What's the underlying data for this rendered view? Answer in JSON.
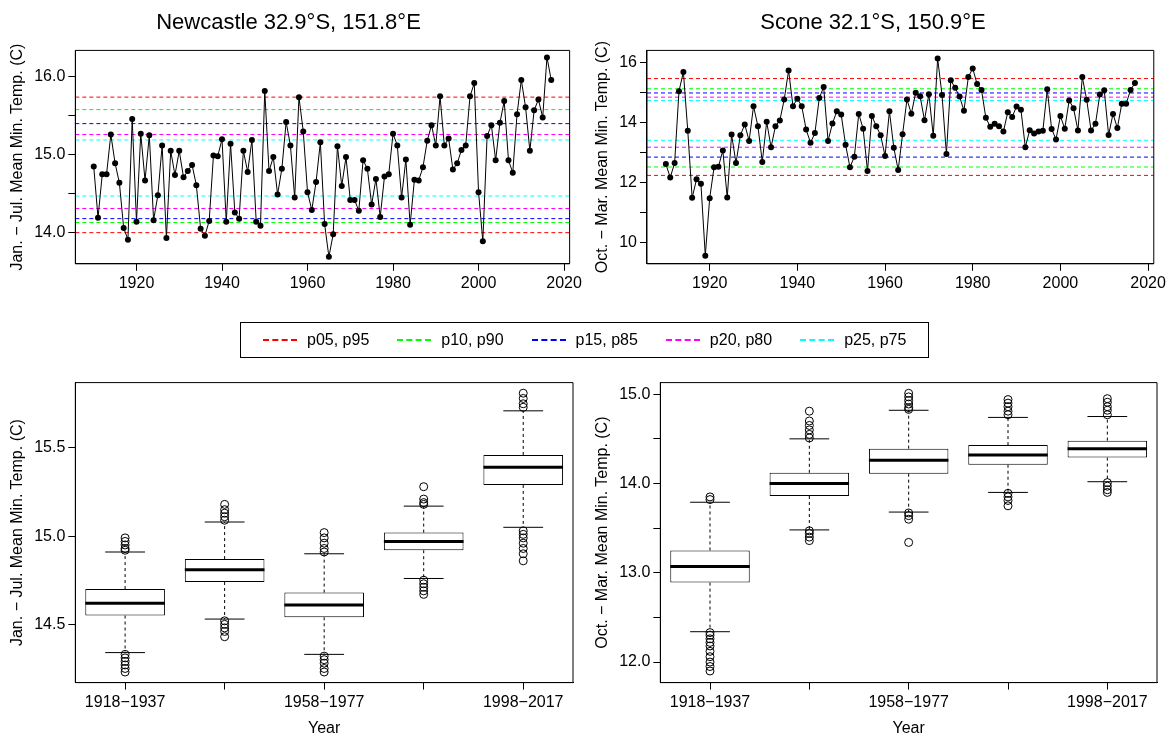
{
  "chart_data": [
    {
      "type": "line",
      "title": "Newcastle 32.9°S, 151.8°E",
      "ylabel": "Jan. − Jul. Mean Min. Temp. (C)",
      "color": "#000000",
      "marker": "circle",
      "line_style": "solid",
      "legend": "bottom",
      "x": [
        1910,
        1911,
        1912,
        1913,
        1914,
        1915,
        1916,
        1917,
        1918,
        1919,
        1920,
        1921,
        1922,
        1923,
        1924,
        1925,
        1926,
        1927,
        1928,
        1929,
        1930,
        1931,
        1932,
        1933,
        1934,
        1935,
        1936,
        1937,
        1938,
        1939,
        1940,
        1941,
        1942,
        1943,
        1944,
        1945,
        1946,
        1947,
        1948,
        1949,
        1950,
        1951,
        1952,
        1953,
        1954,
        1955,
        1956,
        1957,
        1958,
        1959,
        1960,
        1961,
        1962,
        1963,
        1964,
        1965,
        1966,
        1967,
        1968,
        1969,
        1970,
        1971,
        1972,
        1973,
        1974,
        1975,
        1976,
        1977,
        1978,
        1979,
        1980,
        1981,
        1982,
        1983,
        1984,
        1985,
        1986,
        1987,
        1988,
        1989,
        1990,
        1991,
        1992,
        1993,
        1994,
        1995,
        1996,
        1997,
        1998,
        1999,
        2000,
        2001,
        2002,
        2003,
        2004,
        2005,
        2006,
        2007,
        2008,
        2009,
        2010,
        2011,
        2012,
        2013,
        2014,
        2015,
        2016,
        2017
      ],
      "values": [
        14.85,
        14.19,
        14.75,
        14.75,
        15.26,
        14.89,
        14.64,
        14.06,
        13.91,
        15.46,
        14.14,
        15.27,
        14.67,
        15.25,
        14.16,
        14.48,
        15.12,
        13.93,
        15.05,
        14.74,
        15.05,
        14.71,
        14.79,
        14.87,
        14.61,
        14.05,
        13.96,
        14.15,
        14.99,
        14.98,
        15.2,
        14.14,
        15.14,
        14.26,
        14.18,
        15.05,
        14.78,
        15.19,
        14.14,
        14.09,
        15.82,
        14.79,
        14.97,
        14.49,
        14.82,
        15.42,
        15.12,
        14.45,
        15.74,
        15.3,
        14.52,
        14.29,
        14.65,
        15.16,
        14.11,
        13.69,
        13.98,
        15.11,
        14.6,
        14.97,
        14.42,
        14.42,
        14.28,
        14.93,
        14.82,
        14.36,
        14.69,
        14.2,
        14.72,
        14.75,
        15.27,
        15.12,
        14.45,
        14.94,
        14.1,
        14.68,
        14.67,
        14.84,
        15.18,
        15.38,
        15.12,
        15.75,
        15.12,
        15.21,
        14.81,
        14.89,
        15.06,
        15.12,
        15.75,
        15.92,
        14.52,
        13.89,
        15.24,
        15.38,
        14.93,
        15.41,
        15.69,
        14.93,
        14.77,
        15.52,
        15.96,
        15.61,
        15.05,
        15.57,
        15.71,
        15.48,
        16.25,
        15.96
      ],
      "xlim": [
        1905.7,
        2021.3
      ],
      "xticks": [
        1920,
        1940,
        1960,
        1980,
        2000,
        2020
      ],
      "ylim": [
        13.6,
        16.34
      ],
      "yticks": [
        {
          "value": 14,
          "label": "14.0"
        },
        {
          "value": 14.5,
          "label": null
        },
        {
          "value": 15,
          "label": "15.0"
        },
        {
          "value": 15.5,
          "label": null
        },
        {
          "value": 16,
          "label": "16.0"
        }
      ],
      "ref_lines": [
        {
          "axis": "y",
          "value": 15.74,
          "label": "p05, p95",
          "color": "#ff0000",
          "line_style": "dashed"
        },
        {
          "axis": "y",
          "value": 14.0,
          "color": "#ff0000",
          "line_style": "dashed"
        },
        {
          "axis": "y",
          "value": 15.58,
          "label": "p10, p90",
          "color": "#00ff00",
          "line_style": "dashed"
        },
        {
          "axis": "y",
          "value": 14.13,
          "color": "#00ff00",
          "line_style": "dashed"
        },
        {
          "axis": "y",
          "value": 15.4,
          "label": "p15, p85",
          "color": "#0000ff",
          "line_style": "dashed"
        },
        {
          "axis": "y",
          "value": 14.18,
          "color": "#0000ff",
          "line_style": "dashed"
        },
        {
          "axis": "y",
          "value": 15.26,
          "label": "p20, p80",
          "color": "#ff00ff",
          "line_style": "dashed"
        },
        {
          "axis": "y",
          "value": 14.31,
          "color": "#ff00ff",
          "line_style": "dashed"
        },
        {
          "axis": "y",
          "value": 15.19,
          "label": "p25, p75",
          "color": "#00ffff",
          "line_style": "dashed"
        },
        {
          "axis": "y",
          "value": 14.47,
          "color": "#00ffff",
          "line_style": "dashed"
        }
      ]
    },
    {
      "type": "line",
      "title": "Scone 32.1°S, 150.9°E",
      "ylabel": "Oct. − Mar. Mean Min. Temp. (C)",
      "color": "#000000",
      "marker": "circle",
      "line_style": "solid",
      "x": [
        1910,
        1911,
        1912,
        1913,
        1914,
        1915,
        1916,
        1917,
        1918,
        1919,
        1920,
        1921,
        1922,
        1923,
        1924,
        1925,
        1926,
        1927,
        1928,
        1929,
        1930,
        1931,
        1932,
        1933,
        1934,
        1935,
        1936,
        1937,
        1938,
        1939,
        1940,
        1941,
        1942,
        1943,
        1944,
        1945,
        1946,
        1947,
        1948,
        1949,
        1950,
        1951,
        1952,
        1953,
        1954,
        1955,
        1956,
        1957,
        1958,
        1959,
        1960,
        1961,
        1962,
        1963,
        1964,
        1965,
        1966,
        1967,
        1968,
        1969,
        1970,
        1971,
        1972,
        1973,
        1974,
        1975,
        1976,
        1977,
        1978,
        1979,
        1980,
        1981,
        1982,
        1983,
        1984,
        1985,
        1986,
        1987,
        1988,
        1989,
        1990,
        1991,
        1992,
        1993,
        1994,
        1995,
        1996,
        1997,
        1998,
        1999,
        2000,
        2001,
        2002,
        2003,
        2004,
        2005,
        2006,
        2007,
        2008,
        2009,
        2010,
        2011,
        2012,
        2013,
        2014,
        2015,
        2016,
        2017
      ],
      "values": [
        12.63,
        12.18,
        12.66,
        15.06,
        15.7,
        13.74,
        11.5,
        12.12,
        11.97,
        9.57,
        11.49,
        12.52,
        12.54,
        13.08,
        11.51,
        13.61,
        12.66,
        13.59,
        13.95,
        13.4,
        14.56,
        13.89,
        12.7,
        14.04,
        13.19,
        13.89,
        14.08,
        14.78,
        15.75,
        14.56,
        14.81,
        14.56,
        13.78,
        13.34,
        13.66,
        14.83,
        15.2,
        13.4,
        13.98,
        14.39,
        14.28,
        13.27,
        12.52,
        12.87,
        14.3,
        13.81,
        12.4,
        14.23,
        13.89,
        13.59,
        12.9,
        14.39,
        13.17,
        12.43,
        13.62,
        14.78,
        14.31,
        15.01,
        14.89,
        14.09,
        14.96,
        13.57,
        16.15,
        14.93,
        12.96,
        15.42,
        15.17,
        14.88,
        14.41,
        15.53,
        15.82,
        15.3,
        15.1,
        14.17,
        13.87,
        13.97,
        13.89,
        13.71,
        14.36,
        14.2,
        14.55,
        14.44,
        13.19,
        13.76,
        13.65,
        13.71,
        13.74,
        15.12,
        13.8,
        13.45,
        14.23,
        13.81,
        14.75,
        14.49,
        13.75,
        15.53,
        14.77,
        13.75,
        13.97,
        14.95,
        15.09,
        13.6,
        14.3,
        13.83,
        14.64,
        14.64,
        15.1,
        15.33
      ],
      "xlim": [
        1905.7,
        2021.3
      ],
      "xticks": [
        1920,
        1940,
        1960,
        1980,
        2000,
        2020
      ],
      "ylim": [
        9.3,
        16.42
      ],
      "yticks": [
        10,
        {
          "value": 11,
          "label": null
        },
        12,
        {
          "value": 13,
          "label": null
        },
        14,
        {
          "value": 15,
          "label": null
        },
        16
      ],
      "ref_lines": [
        {
          "axis": "y",
          "value": 15.48,
          "color": "#ff0000",
          "line_style": "dashed"
        },
        {
          "axis": "y",
          "value": 12.25,
          "color": "#ff0000",
          "line_style": "dashed"
        },
        {
          "axis": "y",
          "value": 15.14,
          "color": "#00ff00",
          "line_style": "dashed"
        },
        {
          "axis": "y",
          "value": 12.53,
          "color": "#00ff00",
          "line_style": "dashed"
        },
        {
          "axis": "y",
          "value": 15.0,
          "color": "#0000ff",
          "line_style": "dashed"
        },
        {
          "axis": "y",
          "value": 12.86,
          "color": "#0000ff",
          "line_style": "dashed"
        },
        {
          "axis": "y",
          "value": 14.86,
          "color": "#ff00ff",
          "line_style": "dashed"
        },
        {
          "axis": "y",
          "value": 13.19,
          "color": "#ff00ff",
          "line_style": "dashed"
        },
        {
          "axis": "y",
          "value": 14.75,
          "color": "#00ffff",
          "line_style": "dashed"
        },
        {
          "axis": "y",
          "value": 13.42,
          "color": "#00ffff",
          "line_style": "dashed"
        }
      ]
    },
    {
      "type": "box",
      "xlabel": "Year",
      "ylabel": "Jan. − Jul. Mean Min. Temp. (C)",
      "categories": [
        "1918−1937",
        null,
        "1958−1977",
        null,
        "1998−2017"
      ],
      "ylim": [
        14.17,
        15.87
      ],
      "yticks": [
        {
          "value": 14.5,
          "label": "14.5"
        },
        {
          "value": 15,
          "label": "15.0"
        },
        {
          "value": 15.5,
          "label": "15.5"
        }
      ],
      "boxes": [
        {
          "low": 14.34,
          "q1": 14.55,
          "median": 14.62,
          "q3": 14.7,
          "high": 14.91,
          "outliers": [
            14.99,
            14.97,
            14.95,
            14.93,
            14.92,
            14.33,
            14.31,
            14.29,
            14.27,
            14.25,
            14.23
          ]
        },
        {
          "low": 14.53,
          "q1": 14.74,
          "median": 14.81,
          "q3": 14.87,
          "high": 15.08,
          "outliers": [
            15.18,
            15.15,
            15.13,
            15.11,
            15.09,
            14.52,
            14.5,
            14.48,
            14.46,
            14.43
          ]
        },
        {
          "low": 14.33,
          "q1": 14.54,
          "median": 14.61,
          "q3": 14.68,
          "high": 14.9,
          "outliers": [
            15.02,
            14.99,
            14.96,
            14.93,
            14.91,
            14.32,
            14.3,
            14.28,
            14.25,
            14.23
          ]
        },
        {
          "low": 14.76,
          "q1": 14.92,
          "median": 14.97,
          "q3": 15.02,
          "high": 15.17,
          "outliers": [
            15.28,
            15.21,
            15.19,
            15.18,
            14.75,
            14.73,
            14.71,
            14.69,
            14.67
          ]
        },
        {
          "low": 15.05,
          "q1": 15.29,
          "median": 15.39,
          "q3": 15.46,
          "high": 15.71,
          "outliers": [
            15.81,
            15.78,
            15.75,
            15.73,
            15.03,
            15.01,
            14.99,
            14.96,
            14.93,
            14.9,
            14.86
          ]
        }
      ]
    },
    {
      "type": "box",
      "xlabel": "Year",
      "ylabel": "Oct. − Mar. Mean Min. Temp. (C)",
      "categories": [
        "1918−1937",
        null,
        "1958−1977",
        null,
        "1998−2017"
      ],
      "ylim": [
        11.77,
        15.13
      ],
      "yticks": [
        {
          "value": 12,
          "label": "12.0"
        },
        {
          "value": 12.5,
          "label": null
        },
        {
          "value": 13,
          "label": "13.0"
        },
        {
          "value": 13.5,
          "label": null
        },
        {
          "value": 14,
          "label": "14.0"
        },
        {
          "value": 14.5,
          "label": null
        },
        {
          "value": 15,
          "label": "15.0"
        }
      ],
      "boxes": [
        {
          "low": 12.34,
          "q1": 12.89,
          "median": 13.07,
          "q3": 13.25,
          "high": 13.79,
          "outliers": [
            13.85,
            13.82,
            12.33,
            12.3,
            12.26,
            12.22,
            12.18,
            12.12,
            12.06,
            12.0,
            11.95,
            11.9
          ]
        },
        {
          "low": 13.48,
          "q1": 13.86,
          "median": 14.0,
          "q3": 14.12,
          "high": 14.5,
          "outliers": [
            14.81,
            14.7,
            14.65,
            14.6,
            14.55,
            14.51,
            13.47,
            13.44,
            13.4,
            13.36
          ]
        },
        {
          "low": 13.68,
          "q1": 14.11,
          "median": 14.26,
          "q3": 14.39,
          "high": 14.82,
          "outliers": [
            15.01,
            14.97,
            14.93,
            14.89,
            14.85,
            14.83,
            13.67,
            13.64,
            13.6,
            13.34
          ]
        },
        {
          "low": 13.9,
          "q1": 14.21,
          "median": 14.32,
          "q3": 14.43,
          "high": 14.74,
          "outliers": [
            14.94,
            14.9,
            14.86,
            14.81,
            14.77,
            13.89,
            13.85,
            13.81,
            13.75
          ]
        },
        {
          "low": 14.02,
          "q1": 14.29,
          "median": 14.39,
          "q3": 14.48,
          "high": 14.75,
          "outliers": [
            14.95,
            14.91,
            14.86,
            14.82,
            14.77,
            14.01,
            13.97,
            13.93,
            13.9
          ]
        }
      ]
    }
  ]
}
